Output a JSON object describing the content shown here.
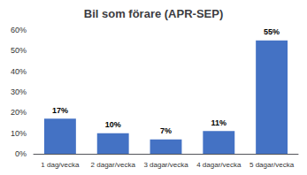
{
  "chart_data": {
    "type": "bar",
    "title": "Bil som förare (APR-SEP)",
    "categories": [
      "1 dag/vecka",
      "2 dagar/vecka",
      "3 dagar/vecka",
      "4 dagar/vecka",
      "5 dagar/vecka"
    ],
    "values": [
      17,
      10,
      7,
      11,
      55
    ],
    "value_labels": [
      "17%",
      "10%",
      "7%",
      "11%",
      "55%"
    ],
    "data_labels": true,
    "color": "#4472C4",
    "ylim": [
      0,
      60
    ],
    "yticks": [
      {
        "value": 0,
        "label": "0%"
      },
      {
        "value": 10,
        "label": "10%"
      },
      {
        "value": 20,
        "label": "20%"
      },
      {
        "value": 30,
        "label": "30%"
      },
      {
        "value": 40,
        "label": "40%"
      },
      {
        "value": 50,
        "label": "50%"
      },
      {
        "value": 60,
        "label": "60%"
      }
    ],
    "grid": false
  }
}
